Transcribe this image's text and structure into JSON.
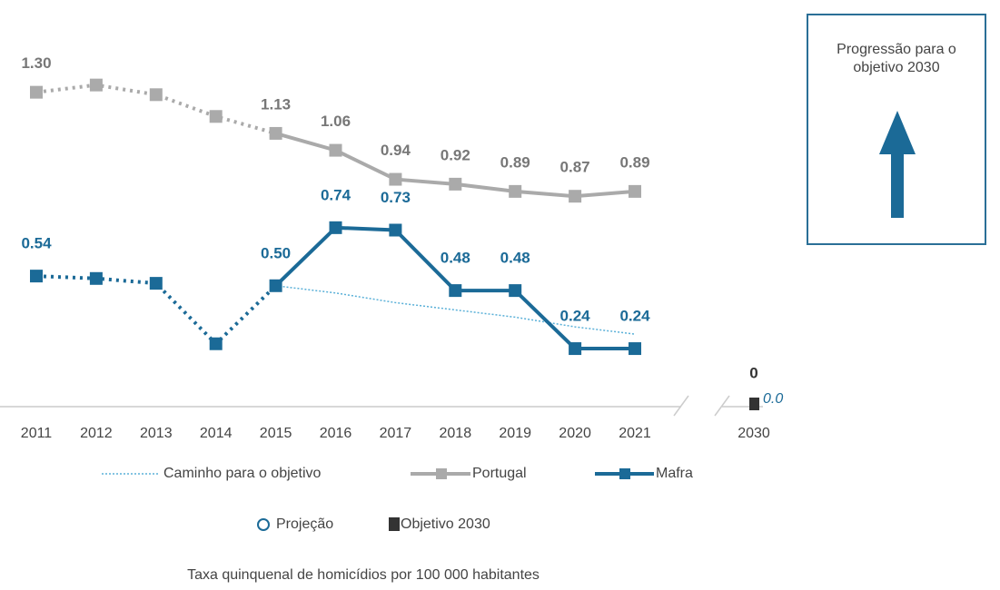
{
  "chart_data": {
    "type": "line",
    "categories": [
      "2011",
      "2012",
      "2013",
      "2014",
      "2015",
      "2016",
      "2017",
      "2018",
      "2019",
      "2020",
      "2021",
      "2030"
    ],
    "ylim": [
      0,
      1.4
    ],
    "series": [
      {
        "name": "Caminho para o objetivo",
        "color": "#5ab0d8",
        "values": [
          null,
          null,
          null,
          null,
          0.5,
          0.47,
          0.43,
          0.4,
          0.37,
          0.33,
          0.3,
          null
        ]
      },
      {
        "name": "Portugal",
        "color": "#aaaaaa",
        "values": [
          1.3,
          1.33,
          1.29,
          1.2,
          1.13,
          1.06,
          0.94,
          0.92,
          0.89,
          0.87,
          0.89,
          null
        ],
        "value_labels": [
          "1.30",
          null,
          null,
          null,
          "1.13",
          "1.06",
          "0.94",
          "0.92",
          "0.89",
          "0.87",
          "0.89",
          null
        ]
      },
      {
        "name": "Mafra",
        "color": "#1b6a97",
        "values": [
          0.54,
          0.53,
          0.51,
          0.26,
          0.5,
          0.74,
          0.73,
          0.48,
          0.48,
          0.24,
          0.24,
          null
        ],
        "value_labels": [
          "0.54",
          null,
          null,
          null,
          "0.50",
          "0.74",
          "0.73",
          "0.48",
          "0.48",
          "0.24",
          "0.24",
          null
        ]
      },
      {
        "name": "Projeção",
        "color": "#1b6a97",
        "values": [
          null,
          null,
          null,
          null,
          null,
          null,
          null,
          null,
          null,
          null,
          null,
          0
        ],
        "value_labels": [
          null,
          null,
          null,
          null,
          null,
          null,
          null,
          null,
          null,
          null,
          null,
          "0.0"
        ]
      },
      {
        "name": "Objetivo 2030",
        "color": "#333333",
        "values": [
          null,
          null,
          null,
          null,
          null,
          null,
          null,
          null,
          null,
          null,
          null,
          0
        ]
      }
    ],
    "box_text": "Progressão para o objetivo 2030",
    "caption": "Taxa quinquenal de homicídios por 100 000 habitantes"
  }
}
